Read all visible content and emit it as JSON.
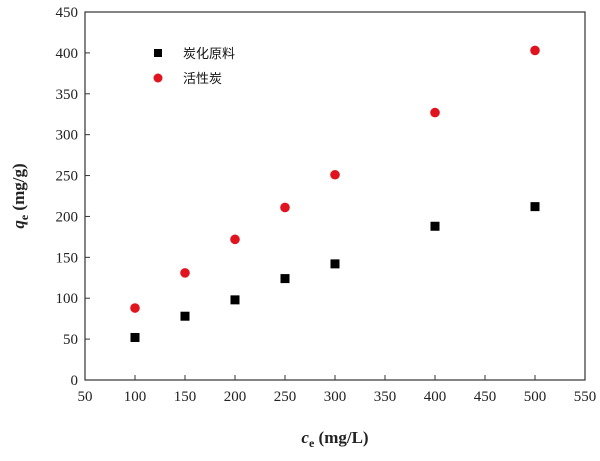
{
  "chart_data": {
    "type": "scatter",
    "xlabel_var": "c",
    "xlabel_sub": "e",
    "xlabel_unit": " (mg/L)",
    "ylabel_var": "q",
    "ylabel_sub": "e",
    "ylabel_unit": " (mg/g)",
    "xlim": [
      50,
      550
    ],
    "ylim": [
      0,
      450
    ],
    "xticks": [
      50,
      100,
      150,
      200,
      250,
      300,
      350,
      400,
      450,
      500,
      550
    ],
    "yticks": [
      0,
      50,
      100,
      150,
      200,
      250,
      300,
      350,
      400,
      450
    ],
    "grid": false,
    "legend_position": "top-left",
    "series": [
      {
        "name": "炭化原料",
        "marker": "square",
        "color": "#000000",
        "x": [
          100,
          150,
          200,
          250,
          300,
          400,
          500
        ],
        "y": [
          52,
          78,
          98,
          124,
          142,
          188,
          212
        ]
      },
      {
        "name": "活性炭",
        "marker": "circle",
        "color": "#e0141e",
        "x": [
          100,
          150,
          200,
          250,
          300,
          400,
          500
        ],
        "y": [
          88,
          131,
          172,
          211,
          251,
          327,
          403
        ]
      }
    ]
  }
}
